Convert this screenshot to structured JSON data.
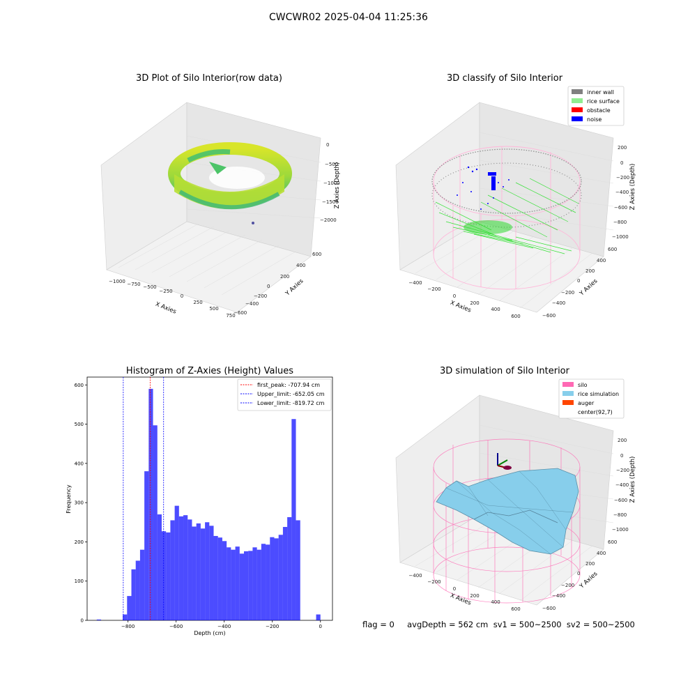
{
  "figure": {
    "suptitle": "CWCWR02 2025-04-04 11:25:36",
    "footer": "flag = 0     avgDepth = 562 cm  sv1 = 500~2500  sv2 = 500~2500"
  },
  "panels": {
    "raw": {
      "title": "3D Plot of Silo Interior(row data)",
      "xlabel": "X Axies",
      "ylabel": "Y Axies",
      "zlabel": "Z Axies (Depth)",
      "xticks": [
        "−1000",
        "−750",
        "−500",
        "−250",
        "0",
        "250",
        "500",
        "750"
      ],
      "yticks": [
        "600",
        "400",
        "200",
        "0",
        "−200",
        "−400",
        "−600"
      ],
      "zticks": [
        "0",
        "−500",
        "−1000",
        "−1500",
        "−2000"
      ]
    },
    "classify": {
      "title": "3D classify of Silo Interior",
      "xlabel": "X Axies",
      "ylabel": "Y Axies",
      "zlabel": "Z Axies (Depth)",
      "xticks": [
        "−400",
        "−200",
        "0",
        "200",
        "400",
        "600"
      ],
      "yticks": [
        "600",
        "400",
        "200",
        "0",
        "−200",
        "−400",
        "−600"
      ],
      "zticks": [
        "200",
        "0",
        "−200",
        "−400",
        "−600",
        "−800",
        "−1000"
      ],
      "legend": [
        {
          "label": "inner wall",
          "color": "#808080"
        },
        {
          "label": "rice surface",
          "color": "#90ee90"
        },
        {
          "label": "obstacle",
          "color": "#ff0000"
        },
        {
          "label": "noise",
          "color": "#0000ff"
        }
      ]
    },
    "simulation": {
      "title": "3D simulation of Silo Interior",
      "xlabel": "X Axies",
      "ylabel": "Y Axies",
      "zlabel": "Z Axies (Depth)",
      "xticks": [
        "−400",
        "−200",
        "0",
        "200",
        "400",
        "600"
      ],
      "yticks": [
        "600",
        "400",
        "200",
        "0",
        "−200",
        "−400",
        "−600"
      ],
      "zticks": [
        "200",
        "0",
        "−200",
        "−400",
        "−600",
        "−800",
        "−1000"
      ],
      "legend": [
        {
          "label": "silo",
          "color": "#ff69b4"
        },
        {
          "label": "rice simulation",
          "color": "#87ceeb"
        },
        {
          "label": "auger",
          "color": "#ff4500"
        },
        {
          "label": "center(92,7)",
          "color": "#ffffff"
        }
      ]
    }
  },
  "chart_data": {
    "type": "bar",
    "title": "Histogram of Z-Axies (Height) Values",
    "xlabel": "Depth (cm)",
    "ylabel": "Frequency",
    "xlim": [
      -970,
      50
    ],
    "ylim": [
      0,
      620
    ],
    "xticks": [
      -800,
      -600,
      -400,
      -200,
      0
    ],
    "yticks": [
      0,
      100,
      200,
      300,
      400,
      500,
      600
    ],
    "bar_color": "#0000ff",
    "bins": [
      {
        "x0": -930,
        "x1": -912,
        "value": 2
      },
      {
        "x0": -822,
        "x1": -804,
        "value": 15
      },
      {
        "x0": -804,
        "x1": -786,
        "value": 62
      },
      {
        "x0": -786,
        "x1": -768,
        "value": 130
      },
      {
        "x0": -768,
        "x1": -750,
        "value": 152
      },
      {
        "x0": -750,
        "x1": -732,
        "value": 180
      },
      {
        "x0": -732,
        "x1": -714,
        "value": 380
      },
      {
        "x0": -714,
        "x1": -696,
        "value": 590
      },
      {
        "x0": -696,
        "x1": -678,
        "value": 497
      },
      {
        "x0": -678,
        "x1": -660,
        "value": 270
      },
      {
        "x0": -660,
        "x1": -642,
        "value": 227
      },
      {
        "x0": -642,
        "x1": -624,
        "value": 224
      },
      {
        "x0": -624,
        "x1": -606,
        "value": 255
      },
      {
        "x0": -606,
        "x1": -588,
        "value": 292
      },
      {
        "x0": -588,
        "x1": -570,
        "value": 265
      },
      {
        "x0": -570,
        "x1": -552,
        "value": 268
      },
      {
        "x0": -552,
        "x1": -534,
        "value": 257
      },
      {
        "x0": -534,
        "x1": -516,
        "value": 239
      },
      {
        "x0": -516,
        "x1": -498,
        "value": 247
      },
      {
        "x0": -498,
        "x1": -480,
        "value": 234
      },
      {
        "x0": -480,
        "x1": -462,
        "value": 250
      },
      {
        "x0": -462,
        "x1": -444,
        "value": 241
      },
      {
        "x0": -444,
        "x1": -426,
        "value": 215
      },
      {
        "x0": -426,
        "x1": -408,
        "value": 211
      },
      {
        "x0": -408,
        "x1": -390,
        "value": 202
      },
      {
        "x0": -390,
        "x1": -372,
        "value": 186
      },
      {
        "x0": -372,
        "x1": -354,
        "value": 180
      },
      {
        "x0": -354,
        "x1": -336,
        "value": 188
      },
      {
        "x0": -336,
        "x1": -318,
        "value": 170
      },
      {
        "x0": -318,
        "x1": -300,
        "value": 176
      },
      {
        "x0": -300,
        "x1": -282,
        "value": 177
      },
      {
        "x0": -282,
        "x1": -264,
        "value": 186
      },
      {
        "x0": -264,
        "x1": -246,
        "value": 180
      },
      {
        "x0": -246,
        "x1": -228,
        "value": 195
      },
      {
        "x0": -228,
        "x1": -210,
        "value": 193
      },
      {
        "x0": -210,
        "x1": -192,
        "value": 212
      },
      {
        "x0": -192,
        "x1": -174,
        "value": 209
      },
      {
        "x0": -174,
        "x1": -156,
        "value": 218
      },
      {
        "x0": -156,
        "x1": -138,
        "value": 238
      },
      {
        "x0": -138,
        "x1": -120,
        "value": 263
      },
      {
        "x0": -120,
        "x1": -102,
        "value": 513
      },
      {
        "x0": -102,
        "x1": -84,
        "value": 255
      },
      {
        "x0": -18,
        "x1": 0,
        "value": 15
      }
    ],
    "vlines": [
      {
        "label": "first_peak: -707.94 cm",
        "x": -707.94,
        "color": "#ff0000"
      },
      {
        "label": "Upper_limit: -652.05 cm",
        "x": -652.05,
        "color": "#0000ff"
      },
      {
        "label": "Lower_limit: -819.72 cm",
        "x": -819.72,
        "color": "#0000ff"
      }
    ]
  }
}
